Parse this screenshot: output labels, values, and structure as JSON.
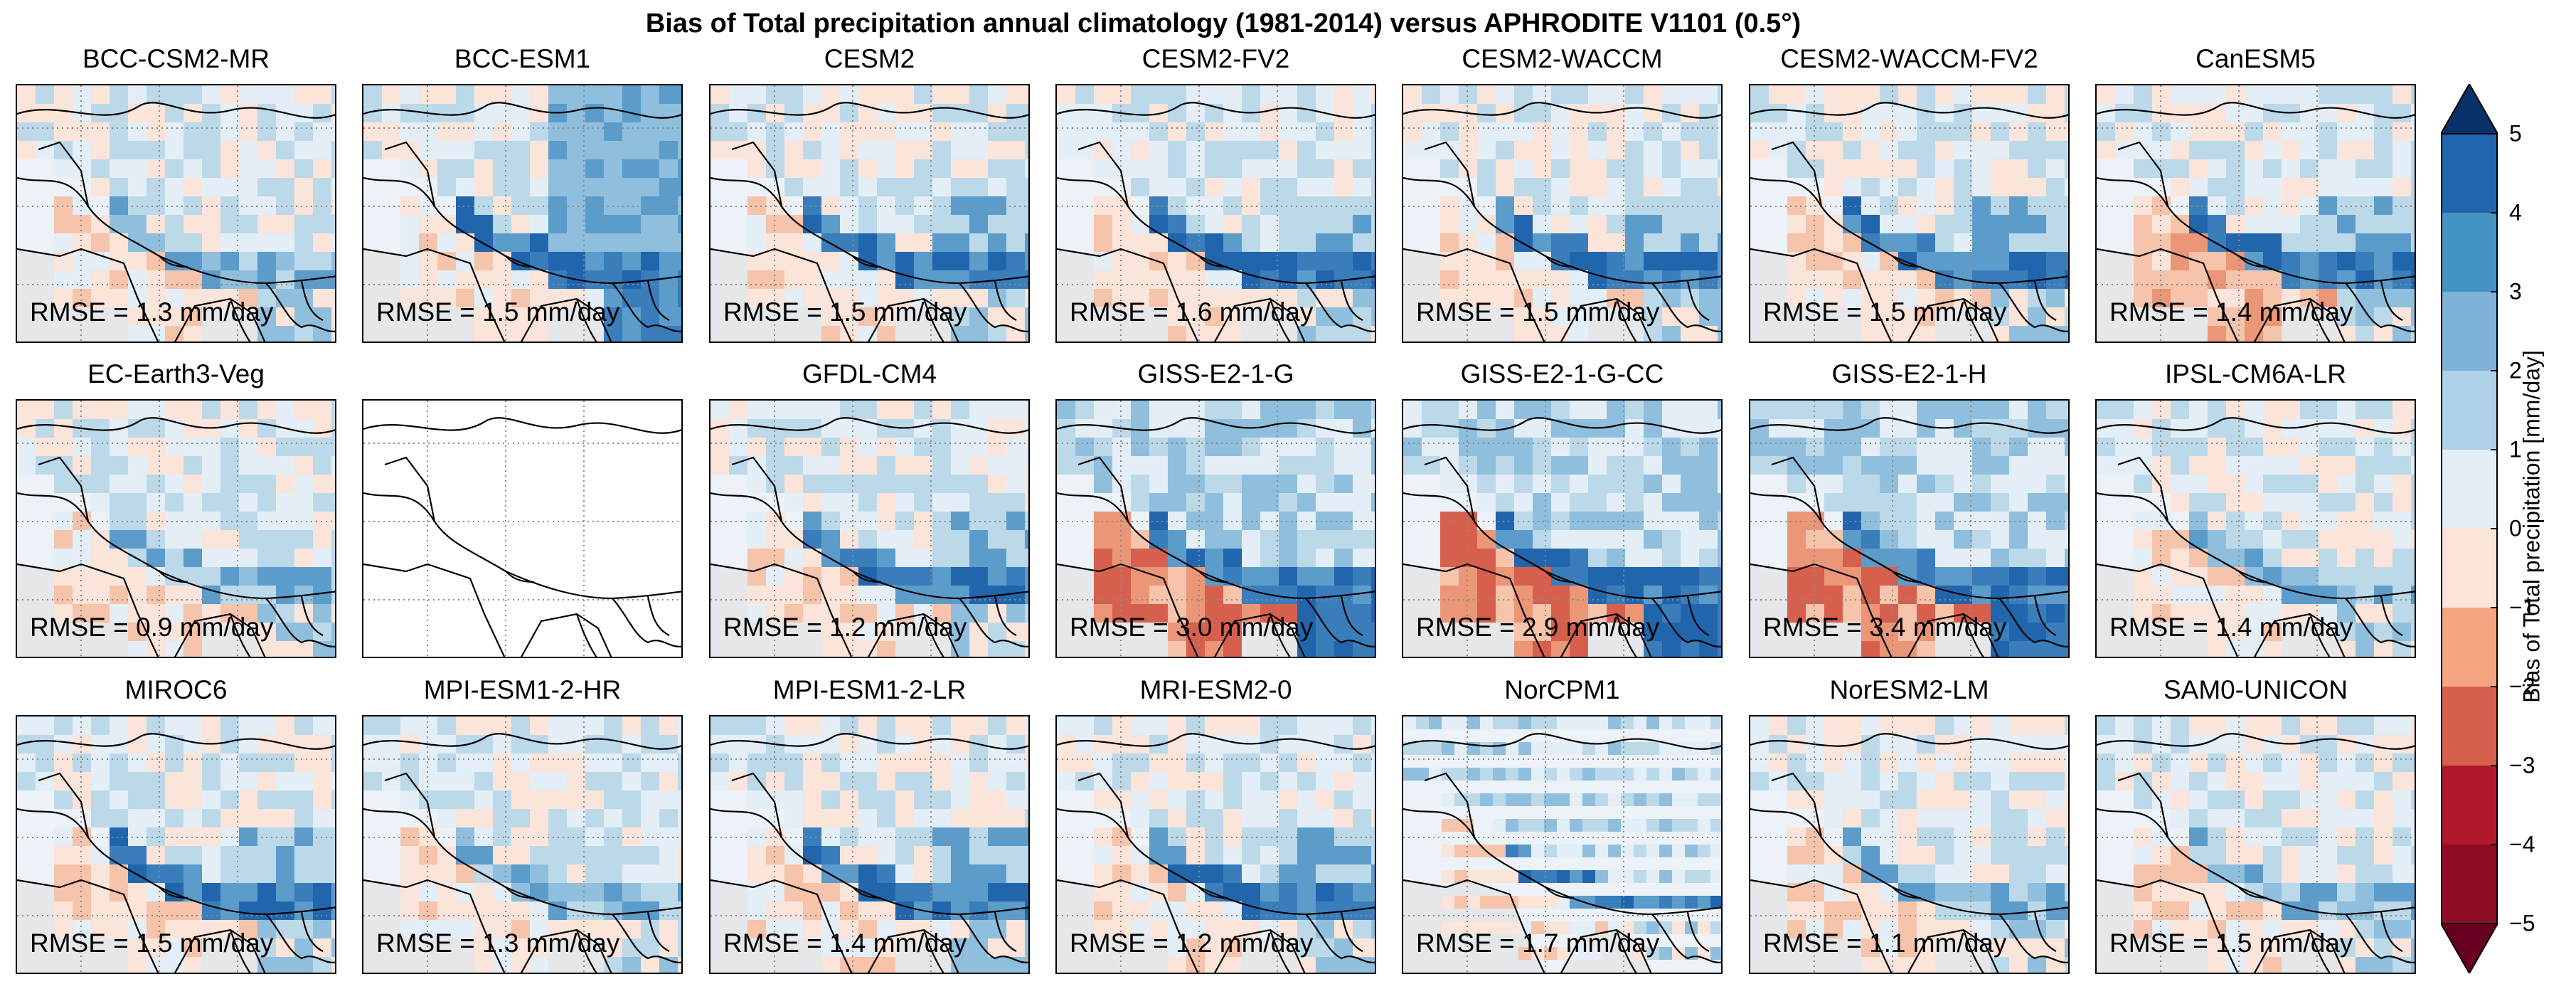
{
  "title": "Bias of Total precipitation annual climatology (1981-2014) versus APHRODITE V1101 (0.5°)",
  "panels": [
    {
      "model": "BCC-CSM2-MR",
      "rmse": "RMSE = 1.3 mm/day",
      "pattern": "mild"
    },
    {
      "model": "BCC-ESM1",
      "rmse": "RMSE = 1.5 mm/day",
      "pattern": "wet-east"
    },
    {
      "model": "CESM2",
      "rmse": "RMSE = 1.5 mm/day",
      "pattern": "himalaya"
    },
    {
      "model": "CESM2-FV2",
      "rmse": "RMSE = 1.6 mm/day",
      "pattern": "himalaya"
    },
    {
      "model": "CESM2-WACCM",
      "rmse": "RMSE = 1.5 mm/day",
      "pattern": "himalaya"
    },
    {
      "model": "CESM2-WACCM-FV2",
      "rmse": "RMSE = 1.5 mm/day",
      "pattern": "himalaya"
    },
    {
      "model": "CanESM5",
      "rmse": "RMSE = 1.4 mm/day",
      "pattern": "dry-india"
    },
    {
      "model": "EC-Earth3-Veg",
      "rmse": "RMSE = 0.9 mm/day",
      "pattern": "mild"
    },
    {
      "model": "",
      "rmse": "",
      "pattern": "empty"
    },
    {
      "model": "GFDL-CM4",
      "rmse": "RMSE = 1.2 mm/day",
      "pattern": "himalaya"
    },
    {
      "model": "GISS-E2-1-G",
      "rmse": "RMSE = 3.0 mm/day",
      "pattern": "giss"
    },
    {
      "model": "GISS-E2-1-G-CC",
      "rmse": "RMSE = 2.9 mm/day",
      "pattern": "giss"
    },
    {
      "model": "GISS-E2-1-H",
      "rmse": "RMSE = 3.4 mm/day",
      "pattern": "giss"
    },
    {
      "model": "IPSL-CM6A-LR",
      "rmse": "RMSE = 1.4 mm/day",
      "pattern": "mild"
    },
    {
      "model": "MIROC6",
      "rmse": "RMSE = 1.5 mm/day",
      "pattern": "himalaya"
    },
    {
      "model": "MPI-ESM1-2-HR",
      "rmse": "RMSE = 1.3 mm/day",
      "pattern": "mild"
    },
    {
      "model": "MPI-ESM1-2-LR",
      "rmse": "RMSE = 1.4 mm/day",
      "pattern": "himalaya"
    },
    {
      "model": "MRI-ESM2-0",
      "rmse": "RMSE = 1.2 mm/day",
      "pattern": "himalaya"
    },
    {
      "model": "NorCPM1",
      "rmse": "RMSE = 1.7 mm/day",
      "pattern": "norcpm"
    },
    {
      "model": "NorESM2-LM",
      "rmse": "RMSE = 1.1 mm/day",
      "pattern": "mild"
    },
    {
      "model": "SAM0-UNICON",
      "rmse": "RMSE = 1.5 mm/day",
      "pattern": "mild"
    }
  ],
  "colorbar": {
    "label": "Bias of Total precipitation [mm/day]",
    "ticks": [
      "5",
      "4",
      "3",
      "2",
      "1",
      "0",
      "−1",
      "−2",
      "−3",
      "−4",
      "−5"
    ],
    "colors": [
      "#08306b",
      "#2166ac",
      "#4393c3",
      "#92c5de",
      "#d1e5f0",
      "#f7f7f7",
      "#fddbc7",
      "#f4a582",
      "#d6604d",
      "#b2182b",
      "#67001f"
    ],
    "blue_levels": [
      "#2166ac",
      "#3a7dbb",
      "#5b9ccb",
      "#8fbfdd",
      "#bcd9ea",
      "#e3eef6"
    ],
    "red_levels": [
      "#fbe4d9",
      "#f6c3ab",
      "#eb9677",
      "#d6604d",
      "#b2182b",
      "#7a0a1e"
    ]
  }
}
